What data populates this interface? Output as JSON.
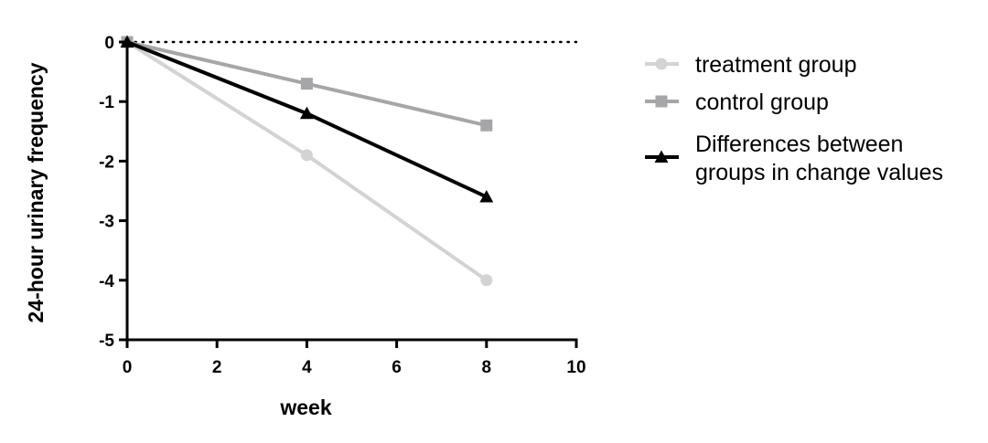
{
  "chart_data": {
    "type": "line",
    "xlabel": "week",
    "ylabel": "24-hour urinary frequency",
    "xlim": [
      0,
      10
    ],
    "ylim": [
      -5,
      0
    ],
    "xticks": [
      0,
      2,
      4,
      6,
      8,
      10
    ],
    "yticks": [
      0,
      -1,
      -2,
      -3,
      -4,
      -5
    ],
    "xtick_labels": [
      "0",
      "2",
      "4",
      "6",
      "8",
      "10"
    ],
    "ytick_labels": [
      "0",
      "-1",
      "-2",
      "-3",
      "-4",
      "-5"
    ],
    "reference_line": {
      "y": 0,
      "style": "dotted"
    },
    "legend_position": "right",
    "series": [
      {
        "name": "treatment group",
        "marker": "circle",
        "color": "#d3d3d3",
        "x": [
          0,
          4,
          8
        ],
        "y": [
          0,
          -1.9,
          -4.0
        ]
      },
      {
        "name": "control group",
        "marker": "square",
        "color": "#a6a6a8",
        "x": [
          0,
          4,
          8
        ],
        "y": [
          0,
          -0.7,
          -1.4
        ]
      },
      {
        "name": "Differences between groups in change values",
        "marker": "triangle",
        "color": "#000000",
        "x": [
          0,
          4,
          8
        ],
        "y": [
          0,
          -1.2,
          -2.6
        ],
        "legend_lines": [
          "Differences between",
          "groups in change values"
        ]
      }
    ]
  }
}
